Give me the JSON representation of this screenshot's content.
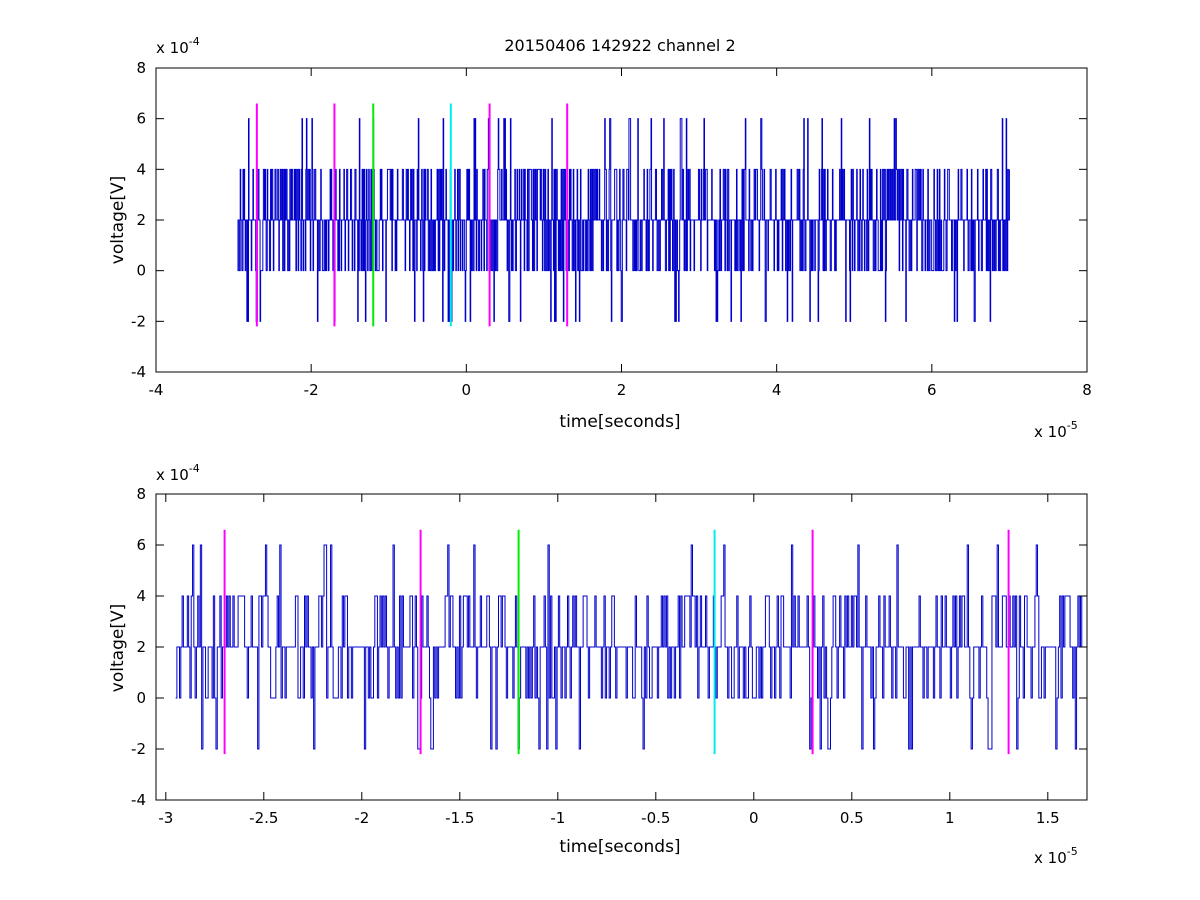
{
  "figure": {
    "title": "20150406 142922 channel 2",
    "background": "#ffffff"
  },
  "colors": {
    "trace": "#0000cc",
    "magenta": "#ff00ff",
    "green": "#00ee00",
    "cyan": "#00eeee"
  },
  "chart_data": [
    {
      "type": "line",
      "xlabel": "time[seconds]",
      "ylabel": "voltage[V]",
      "x_exponent_label": "x 10",
      "x_exponent": "-5",
      "y_exponent_label": "x 10",
      "y_exponent": "-4",
      "xlim": [
        -4,
        8
      ],
      "ylim": [
        -4,
        8
      ],
      "x_ticks": [
        -4,
        -2,
        0,
        2,
        4,
        6,
        8
      ],
      "x_tick_labels": [
        "-4",
        "-2",
        "0",
        "2",
        "4",
        "6",
        "8"
      ],
      "y_ticks": [
        -4,
        -2,
        0,
        2,
        4,
        6,
        8
      ],
      "y_tick_labels": [
        "-4",
        "-2",
        "0",
        "2",
        "4",
        "6",
        "8"
      ],
      "series": [
        {
          "color": "#0000cc",
          "x_range": [
            -2.95,
            7.0
          ],
          "baseline": 2,
          "levels": [
            -2,
            0,
            2,
            4,
            6
          ],
          "peaks": [
            {
              "x": -0.3,
              "y": 6
            },
            {
              "x": 0.1,
              "y": 6
            },
            {
              "x": 1.85,
              "y": 6
            },
            {
              "x": 2.1,
              "y": 6
            },
            {
              "x": 3.8,
              "y": 6
            },
            {
              "x": 4.35,
              "y": 6
            },
            {
              "x": -1.2,
              "y": 6
            },
            {
              "x": -2.68,
              "y": 4
            },
            {
              "x": -1.95,
              "y": 4
            },
            {
              "x": -1.0,
              "y": 4
            }
          ],
          "troughs": [
            {
              "x": -2.7,
              "y": -2
            },
            {
              "x": -1.7,
              "y": -2
            },
            {
              "x": 0.55,
              "y": -2
            },
            {
              "x": 1.15,
              "y": -2
            },
            {
              "x": 1.25,
              "y": -2
            },
            {
              "x": 2.0,
              "y": -2
            },
            {
              "x": 3.85,
              "y": -2
            },
            {
              "x": 5.4,
              "y": -2
            },
            {
              "x": 6.55,
              "y": -2
            },
            {
              "x": 6.75,
              "y": -2
            }
          ]
        }
      ],
      "markers": [
        {
          "x": -2.7,
          "color": "#ff00ff",
          "y_range": [
            -2.2,
            6.6
          ]
        },
        {
          "x": -1.7,
          "color": "#ff00ff",
          "y_range": [
            -2.2,
            6.6
          ]
        },
        {
          "x": -1.2,
          "color": "#00ee00",
          "y_range": [
            -2.2,
            6.6
          ]
        },
        {
          "x": -0.2,
          "color": "#00eeee",
          "y_range": [
            -2.2,
            6.6
          ]
        },
        {
          "x": 0.3,
          "color": "#ff00ff",
          "y_range": [
            -2.2,
            6.6
          ]
        },
        {
          "x": 1.3,
          "color": "#ff00ff",
          "y_range": [
            -2.2,
            6.6
          ]
        }
      ]
    },
    {
      "type": "line",
      "xlabel": "time[seconds]",
      "ylabel": "voltage[V]",
      "x_exponent_label": "x 10",
      "x_exponent": "-5",
      "y_exponent_label": "x 10",
      "y_exponent": "-4",
      "xlim": [
        -3.05,
        1.7
      ],
      "ylim": [
        -4,
        8
      ],
      "x_ticks": [
        -3,
        -2.5,
        -2,
        -1.5,
        -1,
        -0.5,
        0,
        0.5,
        1,
        1.5
      ],
      "x_tick_labels": [
        "-3",
        "-2.5",
        "-2",
        "-1.5",
        "-1",
        "-0.5",
        "0",
        "0.5",
        "1",
        "1.5"
      ],
      "y_ticks": [
        -4,
        -2,
        0,
        2,
        4,
        6,
        8
      ],
      "y_tick_labels": [
        "-4",
        "-2",
        "0",
        "2",
        "4",
        "6",
        "8"
      ],
      "series": [
        {
          "color": "#0000cc",
          "x_range": [
            -2.95,
            1.7
          ],
          "baseline": 2,
          "levels": [
            -2,
            0,
            2,
            4,
            6
          ],
          "peaks": [
            {
              "x": -1.56,
              "y": 6
            },
            {
              "x": -0.32,
              "y": 6
            },
            {
              "x": -2.69,
              "y": 4
            },
            {
              "x": -2.5,
              "y": 4
            },
            {
              "x": -1.48,
              "y": 4
            },
            {
              "x": -0.35,
              "y": 4
            },
            {
              "x": 1.22,
              "y": 4
            },
            {
              "x": 1.32,
              "y": 4
            }
          ],
          "troughs": [
            {
              "x": -2.53,
              "y": -2
            },
            {
              "x": -1.71,
              "y": -2
            },
            {
              "x": -1.64,
              "y": -2
            },
            {
              "x": -0.89,
              "y": -2
            },
            {
              "x": 0.61,
              "y": -2
            },
            {
              "x": 0.79,
              "y": -2
            },
            {
              "x": 1.11,
              "y": -2
            },
            {
              "x": 1.2,
              "y": -2
            },
            {
              "x": 1.34,
              "y": -2
            }
          ]
        }
      ],
      "markers": [
        {
          "x": -2.7,
          "color": "#ff00ff",
          "y_range": [
            -2.2,
            6.6
          ]
        },
        {
          "x": -1.7,
          "color": "#ff00ff",
          "y_range": [
            -2.2,
            6.6
          ]
        },
        {
          "x": -1.2,
          "color": "#00ee00",
          "y_range": [
            -2.2,
            6.6
          ]
        },
        {
          "x": -0.2,
          "color": "#00eeee",
          "y_range": [
            -2.2,
            6.6
          ]
        },
        {
          "x": 0.3,
          "color": "#ff00ff",
          "y_range": [
            -2.2,
            6.6
          ]
        },
        {
          "x": 1.3,
          "color": "#ff00ff",
          "y_range": [
            -2.2,
            6.6
          ]
        }
      ]
    }
  ]
}
